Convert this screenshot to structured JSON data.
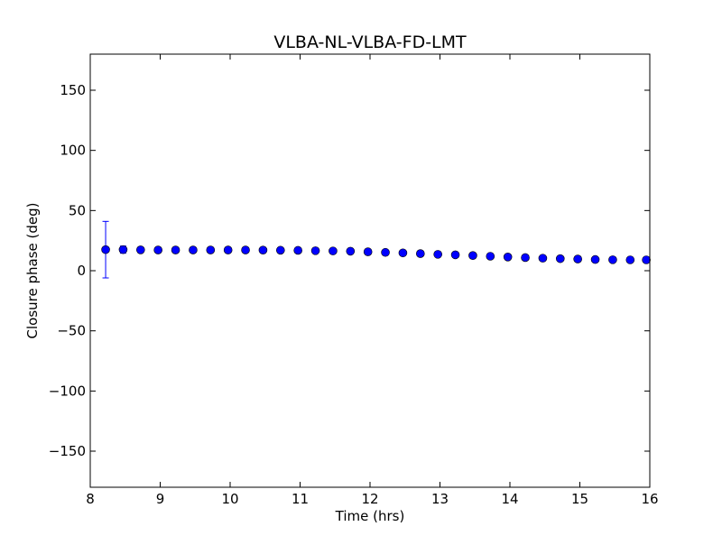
{
  "chart_data": {
    "type": "scatter",
    "title": "VLBA-NL-VLBA-FD-LMT",
    "xlabel": "Time (hrs)",
    "ylabel": "Closure phase (deg)",
    "xlim": [
      8,
      16
    ],
    "ylim": [
      -180,
      180
    ],
    "xticks": [
      8,
      9,
      10,
      11,
      12,
      13,
      14,
      15,
      16
    ],
    "xtick_labels": [
      "8",
      "9",
      "10",
      "11",
      "12",
      "13",
      "14",
      "15",
      "16"
    ],
    "yticks": [
      -150,
      -100,
      -50,
      0,
      50,
      100,
      150
    ],
    "ytick_labels": [
      "−150",
      "−100",
      "−50",
      "0",
      "50",
      "100",
      "150"
    ],
    "grid": false,
    "marker_color": "#0000ff",
    "errorbar_color": "#0000ff",
    "series": [
      {
        "points": [
          {
            "x": 8.22,
            "y": 17.5,
            "err": 23.5
          },
          {
            "x": 8.47,
            "y": 17.5,
            "err": 3.0
          },
          {
            "x": 8.72,
            "y": 17.3,
            "err": 1.5
          },
          {
            "x": 8.97,
            "y": 17.2,
            "err": 1.0
          },
          {
            "x": 9.22,
            "y": 17.2,
            "err": 1.0
          },
          {
            "x": 9.47,
            "y": 17.2,
            "err": 1.0
          },
          {
            "x": 9.72,
            "y": 17.2,
            "err": 1.0
          },
          {
            "x": 9.97,
            "y": 17.2,
            "err": 1.0
          },
          {
            "x": 10.22,
            "y": 17.2,
            "err": 1.0
          },
          {
            "x": 10.47,
            "y": 17.1,
            "err": 1.0
          },
          {
            "x": 10.72,
            "y": 17.0,
            "err": 1.0
          },
          {
            "x": 10.97,
            "y": 16.9,
            "err": 1.0
          },
          {
            "x": 11.22,
            "y": 16.6,
            "err": 1.0
          },
          {
            "x": 11.47,
            "y": 16.4,
            "err": 1.0
          },
          {
            "x": 11.72,
            "y": 16.2,
            "err": 1.0
          },
          {
            "x": 11.97,
            "y": 15.7,
            "err": 1.0
          },
          {
            "x": 12.22,
            "y": 15.2,
            "err": 1.0
          },
          {
            "x": 12.47,
            "y": 14.8,
            "err": 1.0
          },
          {
            "x": 12.72,
            "y": 14.2,
            "err": 1.0
          },
          {
            "x": 12.97,
            "y": 13.6,
            "err": 1.0
          },
          {
            "x": 13.22,
            "y": 13.2,
            "err": 1.0
          },
          {
            "x": 13.47,
            "y": 12.6,
            "err": 1.0
          },
          {
            "x": 13.72,
            "y": 12.0,
            "err": 1.0
          },
          {
            "x": 13.97,
            "y": 11.4,
            "err": 1.0
          },
          {
            "x": 14.22,
            "y": 10.9,
            "err": 1.0
          },
          {
            "x": 14.47,
            "y": 10.4,
            "err": 1.0
          },
          {
            "x": 14.72,
            "y": 10.0,
            "err": 1.0
          },
          {
            "x": 14.97,
            "y": 9.7,
            "err": 1.0
          },
          {
            "x": 15.22,
            "y": 9.3,
            "err": 1.0
          },
          {
            "x": 15.47,
            "y": 9.1,
            "err": 1.0
          },
          {
            "x": 15.72,
            "y": 9.0,
            "err": 1.0
          },
          {
            "x": 15.95,
            "y": 9.0,
            "err": 1.0
          }
        ]
      }
    ]
  }
}
